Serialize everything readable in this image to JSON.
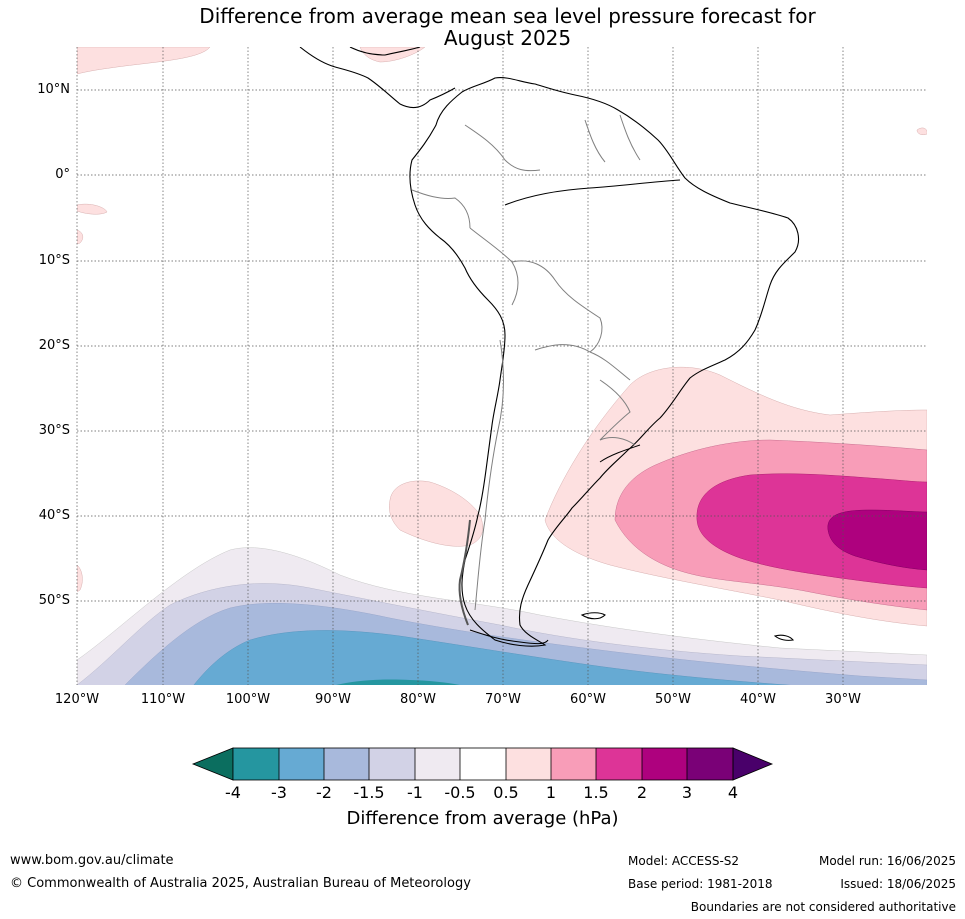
{
  "title_line1": "Difference from average mean sea level pressure forecast for",
  "title_line2": "August 2025",
  "lat_labels": [
    "10°N",
    "0°",
    "10°S",
    "20°S",
    "30°S",
    "40°S",
    "50°S"
  ],
  "lon_labels": [
    "120°W",
    "110°W",
    "100°W",
    "90°W",
    "80°W",
    "70°W",
    "60°W",
    "50°W",
    "40°W",
    "30°W"
  ],
  "colorbar": {
    "ticks": [
      "-4",
      "-3",
      "-2",
      "-1.5",
      "-1",
      "-0.5",
      "0.5",
      "1",
      "1.5",
      "2",
      "3",
      "4"
    ],
    "label": "Difference from average (hPa)",
    "colors": {
      "below_-4": "#0b6e5f",
      "-4_-3": "#2596a0",
      "-3_-2": "#66aad3",
      "-2_-1.5": "#a8b9dc",
      "-1.5_-1": "#d2d2e6",
      "-1_-0.5": "#efeaf1",
      "-0.5_0.5": "#ffffff",
      "0.5_1": "#fde0e0",
      "1_1.5": "#f89db8",
      "1.5_2": "#dd3497",
      "2_3": "#ae017e",
      "3_4": "#7a0177",
      "above_4": "#49006a"
    }
  },
  "footer": {
    "website": "www.bom.gov.au/climate",
    "copyright": "© Commonwealth of Australia 2025, Australian Bureau of Meteorology",
    "model": "Model: ACCESS-S2",
    "base_period": "Base period: 1981-2018",
    "model_run": "Model run: 16/06/2025",
    "issued": "Issued: 18/06/2025",
    "disclaimer": "Boundaries are not considered authoritative"
  }
}
